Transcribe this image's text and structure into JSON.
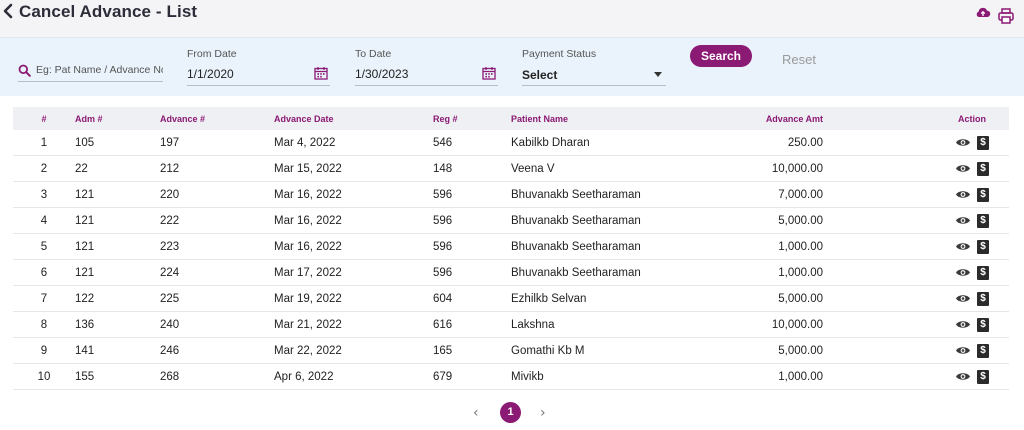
{
  "header": {
    "title": "Cancel Advance - List"
  },
  "filters": {
    "search_placeholder": "Eg: Pat Name / Advance No",
    "from_date_label": "From Date",
    "from_date_value": "1/1/2020",
    "to_date_label": "To Date",
    "to_date_value": "1/30/2023",
    "payment_status_label": "Payment Status",
    "payment_status_value": "Select",
    "search_label": "Search",
    "reset_label": "Reset"
  },
  "table": {
    "columns": [
      "#",
      "Adm #",
      "Advance #",
      "Advance Date",
      "Reg #",
      "Patient Name",
      "Advance Amt",
      "Action"
    ],
    "rows": [
      [
        "1",
        "105",
        "197",
        "Mar 4, 2022",
        "546",
        "Kabilkb Dharan",
        "250.00"
      ],
      [
        "2",
        "22",
        "212",
        "Mar 15, 2022",
        "148",
        "Veena V",
        "10,000.00"
      ],
      [
        "3",
        "121",
        "220",
        "Mar 16, 2022",
        "596",
        "Bhuvanakb Seetharaman",
        "7,000.00"
      ],
      [
        "4",
        "121",
        "222",
        "Mar 16, 2022",
        "596",
        "Bhuvanakb Seetharaman",
        "5,000.00"
      ],
      [
        "5",
        "121",
        "223",
        "Mar 16, 2022",
        "596",
        "Bhuvanakb Seetharaman",
        "1,000.00"
      ],
      [
        "6",
        "121",
        "224",
        "Mar 17, 2022",
        "596",
        "Bhuvanakb Seetharaman",
        "1,000.00"
      ],
      [
        "7",
        "122",
        "225",
        "Mar 19, 2022",
        "604",
        "Ezhilkb Selvan",
        "5,000.00"
      ],
      [
        "8",
        "136",
        "240",
        "Mar 21, 2022",
        "616",
        "Lakshna",
        "10,000.00"
      ],
      [
        "9",
        "141",
        "246",
        "Mar 22, 2022",
        "165",
        "Gomathi Kb M",
        "5,000.00"
      ],
      [
        "10",
        "155",
        "268",
        "Apr 6, 2022",
        "679",
        "Mivikb",
        "1,000.00"
      ]
    ],
    "action_icons": [
      "eye-icon",
      "dollar-icon"
    ],
    "dollar_glyph": "$"
  },
  "pagination": {
    "prev": "‹",
    "current": "1",
    "next": "›"
  },
  "colors": {
    "accent": "#8b1a74",
    "filter_bg": "#eaf3fb",
    "header_row_bg": "#eef0f3"
  }
}
